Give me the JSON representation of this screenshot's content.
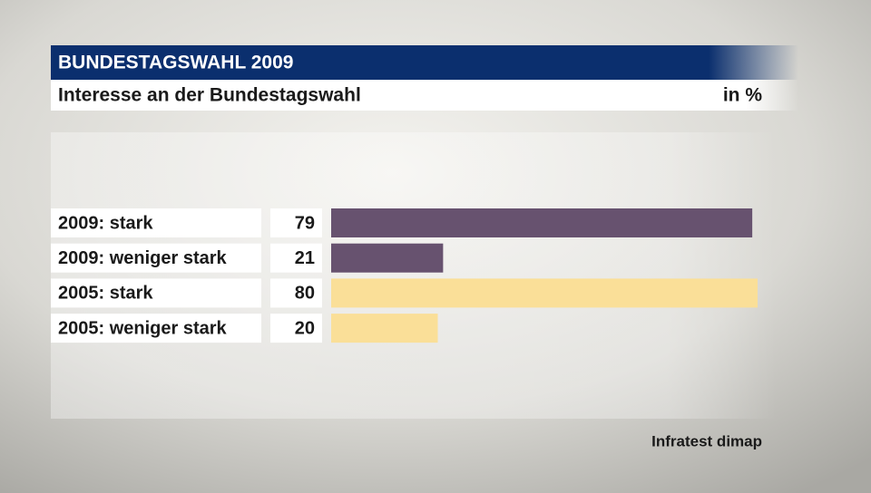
{
  "chart_data": {
    "type": "hbar",
    "header": "BUNDESTAGSWAHL 2009",
    "title": "Interesse an der Bundestagswahl",
    "unit": "in %",
    "source": "Infratest dimap",
    "categories": [
      "2009: stark",
      "2009: weniger stark",
      "2005: stark",
      "2005: weniger stark"
    ],
    "values": [
      79,
      21,
      80,
      20
    ],
    "colors": [
      "#67526f",
      "#67526f",
      "#fadf98",
      "#fadf98"
    ]
  }
}
